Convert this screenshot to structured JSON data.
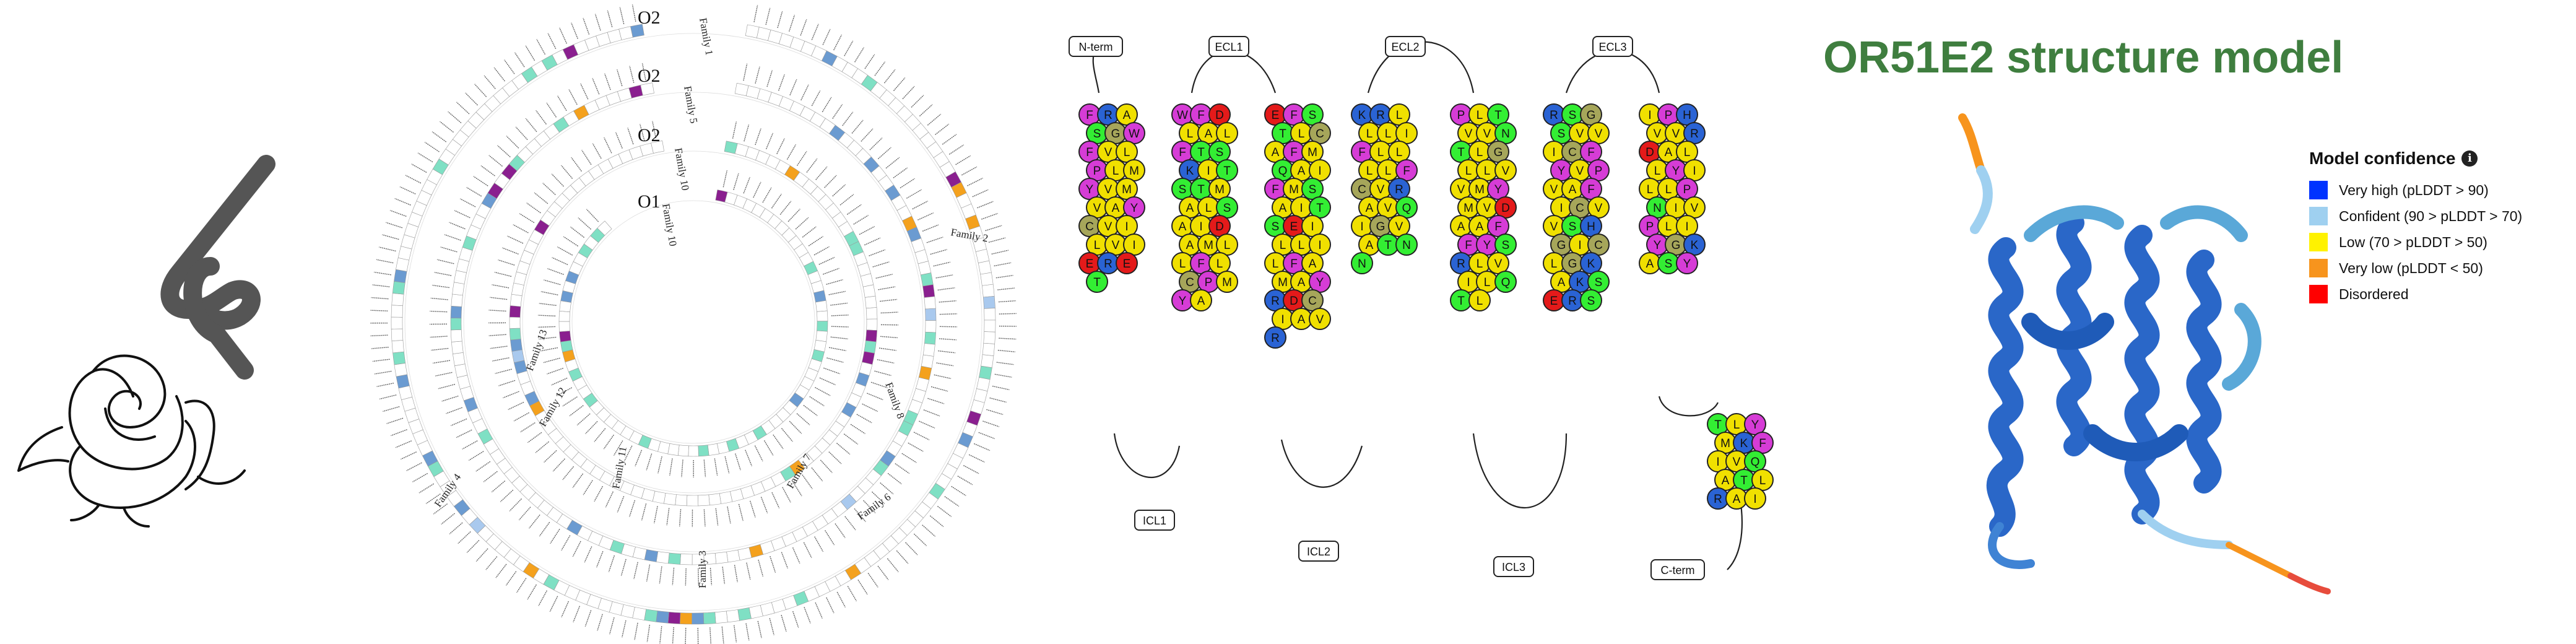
{
  "circle": {
    "ring_labels": [
      "O2",
      "O2",
      "O2",
      "O1"
    ],
    "family_labels": [
      "Family 1",
      "Family 5",
      "Family 10",
      "Family 10",
      "Family 2",
      "Family 4",
      "Family 3",
      "Family 6",
      "Family 7",
      "Family 8",
      "Family 11",
      "Family 12",
      "Family 13"
    ],
    "segment_colors": [
      "#ffffff",
      "#7fe0c4",
      "#6b9bd1",
      "#8a1f8f",
      "#f4a11d",
      "#a9c9ee"
    ]
  },
  "snake": {
    "region_labels": {
      "n_term": "N-term",
      "ecl1": "ECL1",
      "ecl2": "ECL2",
      "ecl3": "ECL3",
      "icl1": "ICL1",
      "icl2": "ICL2",
      "icl3": "ICL3",
      "c_term": "C-term"
    },
    "residue_colors": {
      "hydrophobic": "#f0e000",
      "polar": "#33ee33",
      "positive": "#2a63d4",
      "negative": "#e41a1a",
      "aromatic": "#d63cd6",
      "special": "#a6a65a"
    },
    "helices": [
      [
        "F",
        "R",
        "A",
        "S",
        "G",
        "W",
        "F",
        "V",
        "L",
        "P",
        "L",
        "M",
        "Y",
        "V",
        "M",
        "V",
        "A",
        "Y",
        "C",
        "V",
        "I",
        "L",
        "V",
        "I",
        "E",
        "R",
        "E",
        "T"
      ],
      [
        "W",
        "F",
        "D",
        "L",
        "A",
        "L",
        "F",
        "T",
        "S",
        "K",
        "I",
        "T",
        "S",
        "T",
        "M",
        "A",
        "L",
        "S",
        "A",
        "I",
        "D",
        "A",
        "M",
        "L",
        "L",
        "F",
        "L",
        "C",
        "P",
        "M",
        "Y",
        "A"
      ],
      [
        "E",
        "F",
        "S",
        "T",
        "L",
        "C",
        "A",
        "F",
        "M",
        "Q",
        "A",
        "I",
        "F",
        "M",
        "S",
        "A",
        "I",
        "T",
        "S",
        "E",
        "I",
        "L",
        "L",
        "I",
        "L",
        "F",
        "A",
        "M",
        "A",
        "Y",
        "R",
        "D",
        "C",
        "I",
        "A",
        "V",
        "R"
      ],
      [
        "K",
        "R",
        "L",
        "L",
        "L",
        "I",
        "F",
        "L",
        "L",
        "L",
        "L",
        "F",
        "C",
        "V",
        "R",
        "A",
        "V",
        "Q",
        "I",
        "G",
        "V",
        "A",
        "T",
        "N",
        "N"
      ],
      [
        "P",
        "L",
        "T",
        "V",
        "V",
        "N",
        "T",
        "L",
        "G",
        "L",
        "L",
        "V",
        "V",
        "M",
        "Y",
        "M",
        "V",
        "D",
        "A",
        "A",
        "F",
        "F",
        "Y",
        "S",
        "R",
        "L",
        "V",
        "I",
        "L",
        "Q",
        "T",
        "L"
      ],
      [
        "R",
        "S",
        "G",
        "S",
        "V",
        "V",
        "I",
        "C",
        "F",
        "Y",
        "V",
        "P",
        "V",
        "A",
        "F",
        "I",
        "C",
        "V",
        "V",
        "S",
        "H",
        "G",
        "I",
        "C",
        "L",
        "G",
        "K",
        "A",
        "K",
        "S",
        "E",
        "R",
        "S"
      ],
      [
        "I",
        "P",
        "H",
        "V",
        "V",
        "R",
        "D",
        "A",
        "L",
        "L",
        "Y",
        "I",
        "L",
        "L",
        "P",
        "N",
        "I",
        "V",
        "P",
        "L",
        "I",
        "Y",
        "G",
        "K",
        "A",
        "S",
        "Y"
      ],
      [
        "T",
        "L",
        "Y",
        "M",
        "K",
        "F",
        "I",
        "V",
        "Q",
        "A",
        "T",
        "L",
        "R",
        "A",
        "I"
      ]
    ]
  },
  "structure": {
    "title": "OR51E2 structure model",
    "legend_title": "Model confidence",
    "legend_items": [
      {
        "label": "Very high (pLDDT > 90)",
        "color": "#0033ff"
      },
      {
        "label": "Confident (90 > pLDDT > 70)",
        "color": "#9fd0f0"
      },
      {
        "label": "Low (70 > pLDDT > 50)",
        "color": "#fff200"
      },
      {
        "label": "Very low (pLDDT < 50)",
        "color": "#f7941d"
      },
      {
        "label": "Disordered",
        "color": "#ff0000"
      }
    ]
  }
}
